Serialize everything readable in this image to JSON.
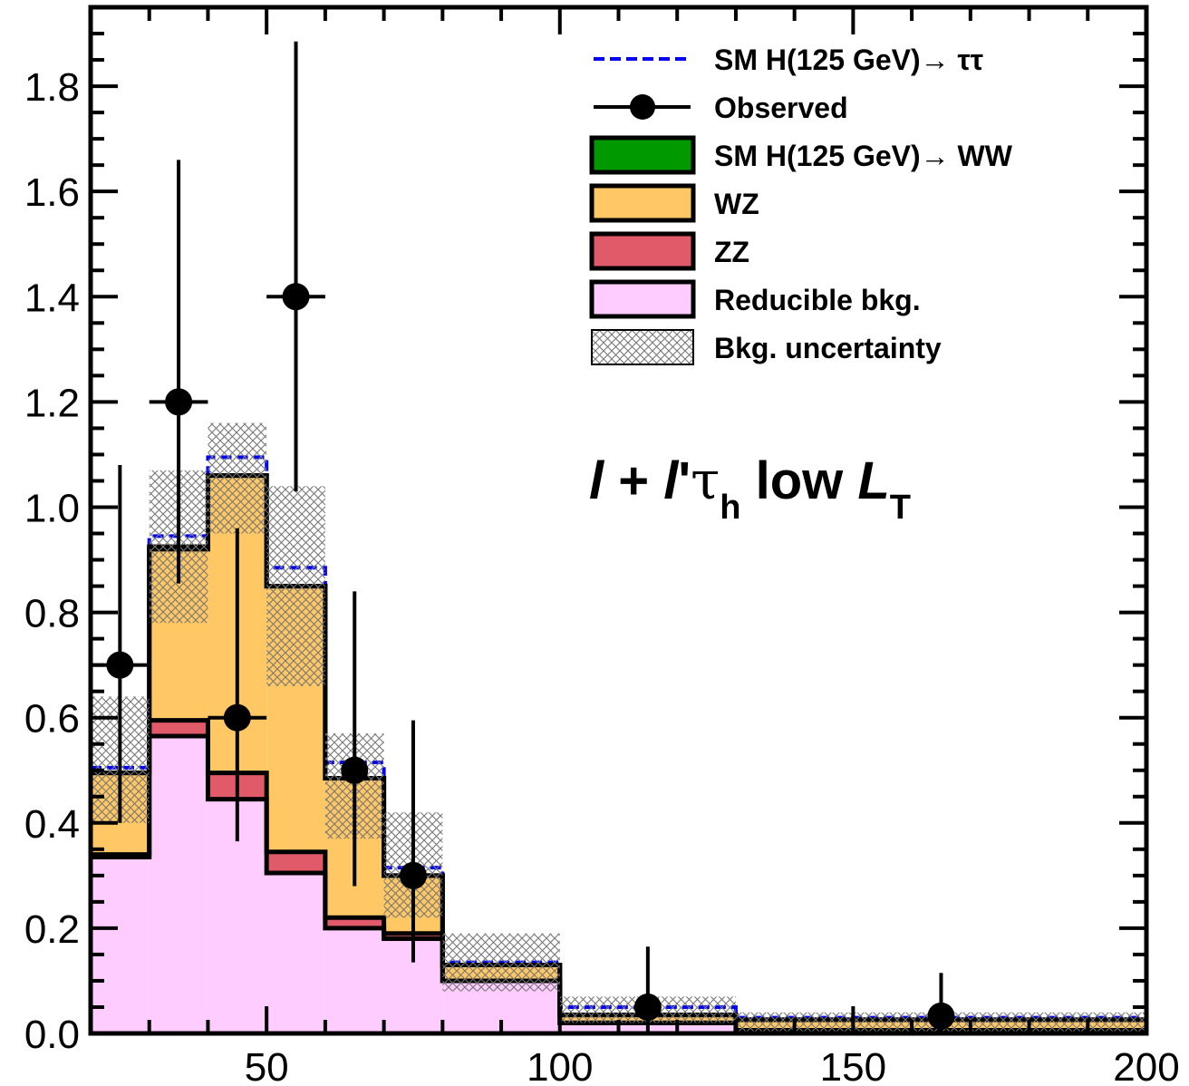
{
  "chart_data": {
    "type": "bar",
    "subtype": "stacked-histogram",
    "xlim": [
      20,
      200
    ],
    "ylim": [
      0.0,
      1.95
    ],
    "x_ticks": [
      50,
      100,
      150,
      200
    ],
    "y_ticks": [
      0.0,
      0.2,
      0.4,
      0.6,
      0.8,
      1.0,
      1.2,
      1.4,
      1.6,
      1.8
    ],
    "y_tick_labels": [
      "0.0",
      "0.2",
      "0.4",
      "0.6",
      "0.8",
      "1.0",
      "1.2",
      "1.4",
      "1.6",
      "1.8"
    ],
    "x_tick_labels": [
      "50",
      "100",
      "150",
      "200"
    ],
    "bin_edges": [
      20,
      30,
      40,
      50,
      60,
      70,
      80,
      100,
      130,
      200
    ],
    "series": [
      {
        "name": "Reducible bkg.",
        "color": "#ffccff",
        "values": [
          0.335,
          0.565,
          0.445,
          0.305,
          0.2,
          0.18,
          0.1,
          0.02,
          0.006
        ]
      },
      {
        "name": "ZZ",
        "color": "#e05a6a",
        "values": [
          0.005,
          0.03,
          0.05,
          0.04,
          0.02,
          0.01,
          0.0,
          0.0,
          0.0
        ]
      },
      {
        "name": "WZ",
        "color": "#ffc864",
        "values": [
          0.155,
          0.325,
          0.565,
          0.505,
          0.265,
          0.11,
          0.03,
          0.015,
          0.02
        ]
      },
      {
        "name": "SM H(125 GeV)→ WW",
        "color": "#009900",
        "values": [
          0.0,
          0.005,
          0.0,
          0.0,
          0.0,
          0.0,
          0.0,
          0.0,
          0.0
        ]
      }
    ],
    "signal_tautau": {
      "name": "SM H(125 GeV)→ ττ",
      "color": "#0000ff",
      "values": [
        0.505,
        0.945,
        1.095,
        0.885,
        0.515,
        0.315,
        0.135,
        0.05,
        0.03
      ]
    },
    "uncertainty_band": {
      "name": "Bkg. uncertainty",
      "lo": [
        0.4,
        0.78,
        0.95,
        0.66,
        0.37,
        0.22,
        0.08,
        0.02,
        0.0
      ],
      "hi": [
        0.64,
        1.07,
        1.16,
        1.04,
        0.57,
        0.42,
        0.19,
        0.07,
        0.04
      ]
    },
    "observed": {
      "name": "Observed",
      "x": [
        25,
        35,
        45,
        55,
        65,
        75,
        115,
        165
      ],
      "y": [
        0.7,
        1.2,
        0.6,
        1.4,
        0.5,
        0.3,
        0.05,
        0.033
      ],
      "x_err": [
        5,
        5,
        5,
        5,
        0,
        0,
        0,
        0
      ],
      "y_lo": [
        0.4,
        0.855,
        0.365,
        1.03,
        0.28,
        0.135,
        0.0,
        0.0
      ],
      "y_hi": [
        1.08,
        1.66,
        0.96,
        1.885,
        0.84,
        0.595,
        0.165,
        0.115
      ]
    },
    "legend": [
      {
        "label": "SM H(125 GeV)→ ττ",
        "kind": "dashed",
        "color": "#0000ff"
      },
      {
        "label": "Observed",
        "kind": "marker",
        "color": "#000000"
      },
      {
        "label": "SM H(125 GeV)→ WW",
        "kind": "box",
        "color": "#009900"
      },
      {
        "label": "WZ",
        "kind": "box",
        "color": "#ffc864"
      },
      {
        "label": "ZZ",
        "kind": "box",
        "color": "#e05a6a"
      },
      {
        "label": "Reducible bkg.",
        "kind": "box",
        "color": "#ffccff"
      },
      {
        "label": "Bkg. uncertainty",
        "kind": "hatch",
        "color": "#777777"
      }
    ],
    "annotation": {
      "l1": "l",
      "plus": " + ",
      "l2": "l",
      "prime": "'",
      "tau": "τ",
      "sub_h": "h",
      "low": " low ",
      "L": "L",
      "sub_T": "T"
    },
    "legend_placement": "top-right",
    "grid": false
  }
}
